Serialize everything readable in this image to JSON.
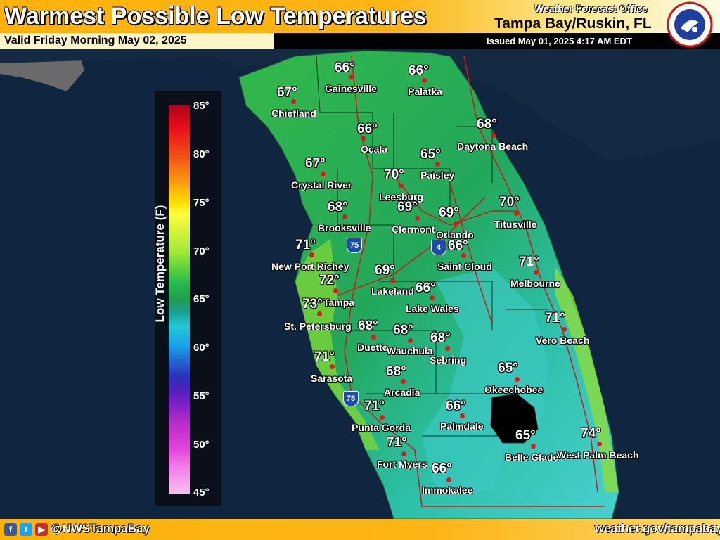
{
  "header": {
    "title": "Warmest Possible Low Temperatures",
    "valid": "Valid Friday Morning May 02, 2025",
    "office_line1": "Weather Forecast Office",
    "office_line2": "Tampa Bay/Ruskin, FL",
    "issued": "Issued May 01, 2025 4:17 AM EDT",
    "logo_text": "NATIONAL WEATHER SERVICE"
  },
  "footer": {
    "social_icons": [
      "facebook-icon",
      "twitter-icon",
      "youtube-icon"
    ],
    "handle": "@NWSTampaBay",
    "website": "weather.gov/tampabay"
  },
  "legend": {
    "title": "Low Temperature (F)",
    "ticks": [
      "85°",
      "80°",
      "75°",
      "70°",
      "65°",
      "60°",
      "55°",
      "50°",
      "45°"
    ],
    "range": [
      45,
      85
    ]
  },
  "highways": [
    "75",
    "4",
    "75"
  ],
  "stations": [
    {
      "name": "Gainesville",
      "temp": "66°"
    },
    {
      "name": "Palatka",
      "temp": "66°"
    },
    {
      "name": "Chiefland",
      "temp": "67°"
    },
    {
      "name": "Ocala",
      "temp": "66°"
    },
    {
      "name": "Daytona Beach",
      "temp": "68°"
    },
    {
      "name": "Paisley",
      "temp": "65°"
    },
    {
      "name": "Crystal River",
      "temp": "67°"
    },
    {
      "name": "Leesburg",
      "temp": "70°"
    },
    {
      "name": "Clermont",
      "temp": "69°"
    },
    {
      "name": "Orlando",
      "temp": "69°"
    },
    {
      "name": "Titusville",
      "temp": "70°"
    },
    {
      "name": "Brooksville",
      "temp": "68°"
    },
    {
      "name": "New Port Richey",
      "temp": "71°"
    },
    {
      "name": "Saint Cloud",
      "temp": "66°"
    },
    {
      "name": "Melbourne",
      "temp": "71°"
    },
    {
      "name": "Lakeland",
      "temp": "69°"
    },
    {
      "name": "Tampa",
      "temp": "72°"
    },
    {
      "name": "Lake Wales",
      "temp": "66°"
    },
    {
      "name": "St. Petersburg",
      "temp": "73°"
    },
    {
      "name": "Vero Beach",
      "temp": "71°"
    },
    {
      "name": "Duette",
      "temp": "68°"
    },
    {
      "name": "Wauchula",
      "temp": "68°"
    },
    {
      "name": "Sebring",
      "temp": "68°"
    },
    {
      "name": "Sarasota",
      "temp": "71°"
    },
    {
      "name": "Arcadia",
      "temp": "68°"
    },
    {
      "name": "Okeechobee",
      "temp": "65°"
    },
    {
      "name": "Punta Gorda",
      "temp": "71°"
    },
    {
      "name": "Palmdale",
      "temp": "66°"
    },
    {
      "name": "West Palm Beach",
      "temp": "74°"
    },
    {
      "name": "Belle Glade",
      "temp": "65°"
    },
    {
      "name": "Fort Myers",
      "temp": "71°"
    },
    {
      "name": "Immokalee",
      "temp": "66°"
    }
  ]
}
